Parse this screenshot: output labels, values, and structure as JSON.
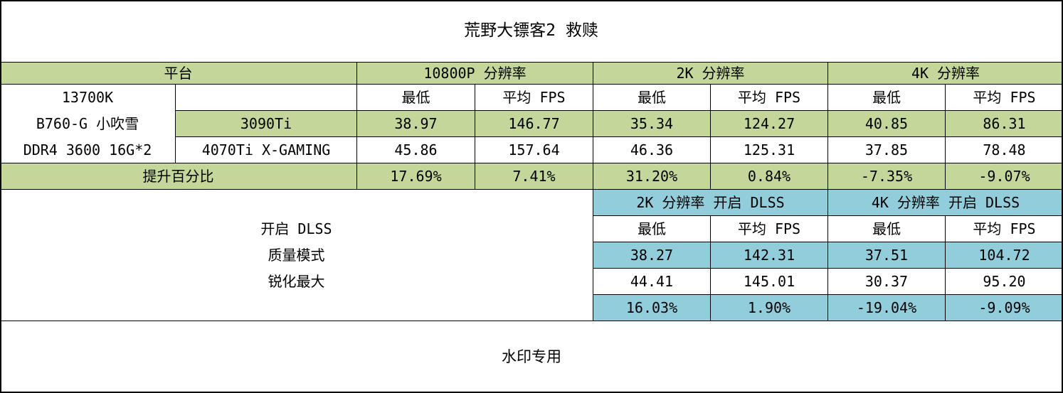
{
  "title": "荒野大镖客2 救赎",
  "watermark": "水印专用",
  "colors": {
    "green": "#c3d79b",
    "blue": "#92cddc",
    "border": "#000000",
    "background": "#ffffff"
  },
  "header": {
    "platform": "平台",
    "res_1080p": "10800P 分辨率",
    "res_2k": "2K 分辨率",
    "res_4k": "4K 分辨率"
  },
  "labels": {
    "min": "最低",
    "avg_fps": "平均 FPS"
  },
  "platform": {
    "line1": "13700K",
    "line2": "B760-G 小吹雪",
    "line3": "DDR4 3600 16G*2"
  },
  "gpus": {
    "gpu1": {
      "name": "3090Ti",
      "values": [
        "38.97",
        "146.77",
        "35.34",
        "124.27",
        "40.85",
        "86.31"
      ]
    },
    "gpu2": {
      "name": "4070Ti X-GAMING",
      "values": [
        "45.86",
        "157.64",
        "46.36",
        "125.31",
        "37.85",
        "78.48"
      ]
    }
  },
  "uplift": {
    "label": "提升百分比",
    "values": [
      "17.69%",
      "7.41%",
      "31.20%",
      "0.84%",
      "-7.35%",
      "-9.07%"
    ]
  },
  "dlss": {
    "left": {
      "line1": "开启 DLSS",
      "line2": "质量模式",
      "line3": "锐化最大"
    },
    "header_2k": "2K 分辨率 开启 DLSS",
    "header_4k": "4K 分辨率 开启 DLSS",
    "row_gpu1": [
      "38.27",
      "142.31",
      "37.51",
      "104.72"
    ],
    "row_gpu2": [
      "44.41",
      "145.01",
      "30.37",
      "95.20"
    ],
    "row_uplift": [
      "16.03%",
      "1.90%",
      "-19.04%",
      "-9.09%"
    ]
  },
  "chart_data": {
    "type": "table",
    "title": "荒野大镖客2 救赎",
    "platform": "13700K B760-G 小吹雪 DDR4 3600 16G*2",
    "resolutions": [
      "10800P 分辨率",
      "2K 分辨率",
      "4K 分辨率"
    ],
    "metrics": [
      "最低",
      "平均 FPS"
    ],
    "native": {
      "3090Ti": {
        "10800P": [
          38.97,
          146.77
        ],
        "2K": [
          35.34,
          124.27
        ],
        "4K": [
          40.85,
          86.31
        ]
      },
      "4070Ti X-GAMING": {
        "10800P": [
          45.86,
          157.64
        ],
        "2K": [
          46.36,
          125.31
        ],
        "4K": [
          37.85,
          78.48
        ]
      },
      "提升百分比": {
        "10800P": [
          "17.69%",
          "7.41%"
        ],
        "2K": [
          "31.20%",
          "0.84%"
        ],
        "4K": [
          "-7.35%",
          "-9.07%"
        ]
      }
    },
    "dlss": {
      "mode": "开启 DLSS 质量模式 锐化最大",
      "resolutions": [
        "2K 分辨率 开启 DLSS",
        "4K 分辨率 开启 DLSS"
      ],
      "3090Ti": {
        "2K": [
          38.27,
          142.31
        ],
        "4K": [
          37.51,
          104.72
        ]
      },
      "4070Ti X-GAMING": {
        "2K": [
          44.41,
          145.01
        ],
        "4K": [
          30.37,
          95.2
        ]
      },
      "提升百分比": {
        "2K": [
          "16.03%",
          "1.90%"
        ],
        "4K": [
          "-19.04%",
          "-9.09%"
        ]
      }
    }
  }
}
